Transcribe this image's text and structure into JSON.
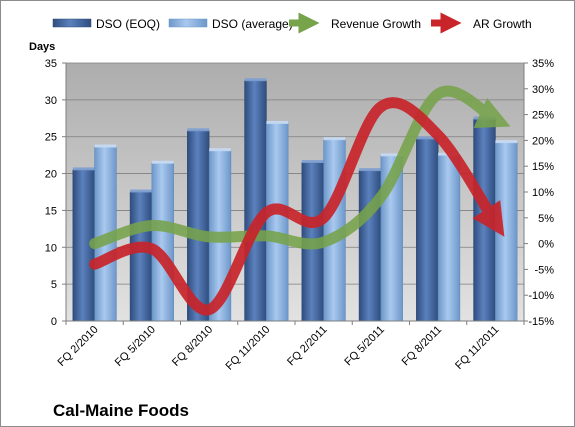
{
  "chart_data": {
    "type": "bar",
    "title": "Cal-Maine Foods",
    "ylabel": "Days",
    "categories": [
      "FQ 2/2010",
      "FQ 5/2010",
      "FQ 8/2010",
      "FQ 11/2010",
      "FQ 2/2011",
      "FQ 5/2011",
      "FQ 8/2011",
      "FQ 11/2011"
    ],
    "ylim": [
      0,
      35
    ],
    "y_ticks": [
      "0",
      "5",
      "10",
      "15",
      "20",
      "25",
      "30",
      "35"
    ],
    "y2lim": [
      -15,
      35
    ],
    "y2_ticks": [
      "-15%",
      "-10%",
      "-5%",
      "0%",
      "5%",
      "10%",
      "15%",
      "20%",
      "25%",
      "30%",
      "35%"
    ],
    "grid": true,
    "legend_position": "top",
    "bar_series": [
      {
        "name": "DSO (EOQ)",
        "color": "#4a6ea9",
        "values": [
          20.5,
          17.5,
          25.8,
          32.6,
          21.5,
          20.4,
          24.7,
          27.4
        ]
      },
      {
        "name": "DSO (average)",
        "color": "#8eb4e3",
        "values": [
          23.6,
          21.4,
          23.1,
          26.8,
          24.6,
          22.4,
          22.5,
          24.2
        ]
      }
    ],
    "line_series": [
      {
        "name": "Revenue Growth",
        "color": "#77a34b",
        "axis": "right",
        "values": [
          0.0,
          3.5,
          1.3,
          1.5,
          0.3,
          9.0,
          29.0,
          24.0
        ]
      },
      {
        "name": "AR Growth",
        "color": "#c8242a",
        "axis": "right",
        "values": [
          -4.0,
          -1.0,
          -12.8,
          6.0,
          5.0,
          26.5,
          21.0,
          4.0
        ]
      }
    ]
  }
}
